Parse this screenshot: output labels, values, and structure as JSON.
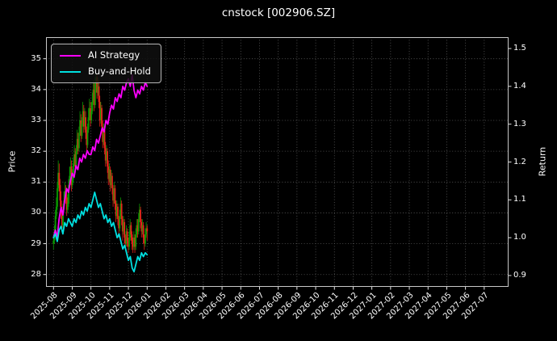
{
  "chart_data": {
    "type": "candlestick+line",
    "title": "cnstock [002906.SZ]",
    "ylabel_left": "Price",
    "ylabel_right": "Return",
    "x_tick_labels": [
      "2025-08",
      "2025-09",
      "2025-10",
      "2025-11",
      "2025-12",
      "2026-01",
      "2026-02",
      "2026-03",
      "2026-04",
      "2026-05",
      "2026-06",
      "2026-07",
      "2026-08",
      "2026-09",
      "2026-10",
      "2026-11",
      "2026-12",
      "2027-01",
      "2027-02",
      "2027-03",
      "2027-04",
      "2027-05",
      "2027-06",
      "2027-07"
    ],
    "y_ticks_left": [
      28,
      29,
      30,
      31,
      32,
      33,
      34,
      35
    ],
    "y_ticks_right": [
      "0.9",
      "1.0",
      "1.1",
      "1.2",
      "1.3",
      "1.4",
      "1.5"
    ],
    "ylim_left": [
      27.6,
      35.7
    ],
    "ylim_right": [
      0.87,
      1.53
    ],
    "xlim_months": [
      -0.4,
      24.3
    ],
    "grid": true,
    "legend_position": "top-left",
    "colors": {
      "background": "#000000",
      "text": "#ffffff",
      "grid": "#5b5b5b",
      "spine": "#c8c8c8",
      "candle_up": "#0a9c00",
      "candle_down": "#e8221c"
    },
    "candles": {
      "x_start_month": 0.0,
      "x_end_month": 5.0,
      "ohlc": [
        [
          29.0,
          29.3,
          28.8,
          29.1
        ],
        [
          29.1,
          29.6,
          29.0,
          29.4
        ],
        [
          29.4,
          30.1,
          29.3,
          29.9
        ],
        [
          29.9,
          30.5,
          29.8,
          30.2
        ],
        [
          30.2,
          31.0,
          30.1,
          30.8
        ],
        [
          30.8,
          31.7,
          30.7,
          31.3
        ],
        [
          31.3,
          31.6,
          30.7,
          30.9
        ],
        [
          30.9,
          31.1,
          30.2,
          30.4
        ],
        [
          30.4,
          30.7,
          29.8,
          30.0
        ],
        [
          30.0,
          30.2,
          29.4,
          29.6
        ],
        [
          29.6,
          30.3,
          29.5,
          30.1
        ],
        [
          30.1,
          30.7,
          30.0,
          30.4
        ],
        [
          30.4,
          31.0,
          30.3,
          30.7
        ],
        [
          30.7,
          30.9,
          30.3,
          30.5
        ],
        [
          30.5,
          30.7,
          29.9,
          30.1
        ],
        [
          30.1,
          30.6,
          30.0,
          30.3
        ],
        [
          30.3,
          31.1,
          30.2,
          30.9
        ],
        [
          30.9,
          31.5,
          30.8,
          31.2
        ],
        [
          31.2,
          31.8,
          31.1,
          31.5
        ],
        [
          31.5,
          31.7,
          30.7,
          30.9
        ],
        [
          30.9,
          31.4,
          30.8,
          31.1
        ],
        [
          31.1,
          31.8,
          31.0,
          31.6
        ],
        [
          31.6,
          32.2,
          31.5,
          31.9
        ],
        [
          31.9,
          32.1,
          31.3,
          31.5
        ],
        [
          31.5,
          32.2,
          31.4,
          32.0
        ],
        [
          32.0,
          32.7,
          31.9,
          32.4
        ],
        [
          32.4,
          32.6,
          31.9,
          32.1
        ],
        [
          32.1,
          32.8,
          32.0,
          32.6
        ],
        [
          32.6,
          33.3,
          32.5,
          33.0
        ],
        [
          33.0,
          33.2,
          32.3,
          32.5
        ],
        [
          32.5,
          33.1,
          32.4,
          32.9
        ],
        [
          32.9,
          33.6,
          32.8,
          33.3
        ],
        [
          33.3,
          33.5,
          32.6,
          32.8
        ],
        [
          32.8,
          33.4,
          32.7,
          33.1
        ],
        [
          33.1,
          33.3,
          32.4,
          32.6
        ],
        [
          32.6,
          32.8,
          32.0,
          32.2
        ],
        [
          32.2,
          32.9,
          32.1,
          32.7
        ],
        [
          32.7,
          33.4,
          32.6,
          33.1
        ],
        [
          33.1,
          33.7,
          33.0,
          33.4
        ],
        [
          33.4,
          33.6,
          32.8,
          33.0
        ],
        [
          33.0,
          33.6,
          32.9,
          33.3
        ],
        [
          33.3,
          33.9,
          33.2,
          33.6
        ],
        [
          33.6,
          34.3,
          33.5,
          34.0
        ],
        [
          34.0,
          34.2,
          33.3,
          33.5
        ],
        [
          33.5,
          34.4,
          33.4,
          34.2
        ],
        [
          34.2,
          34.5,
          33.9,
          34.4
        ],
        [
          34.4,
          34.5,
          33.7,
          33.9
        ],
        [
          33.9,
          34.4,
          33.8,
          34.1
        ],
        [
          34.1,
          34.3,
          33.4,
          33.6
        ],
        [
          33.6,
          33.8,
          32.8,
          33.0
        ],
        [
          33.0,
          33.6,
          32.9,
          33.4
        ],
        [
          33.4,
          33.5,
          32.6,
          32.8
        ],
        [
          32.8,
          33.0,
          32.1,
          32.3
        ],
        [
          32.3,
          32.9,
          32.2,
          32.7
        ],
        [
          32.7,
          32.8,
          31.9,
          32.1
        ],
        [
          32.1,
          32.3,
          31.5,
          31.7
        ],
        [
          31.7,
          32.2,
          31.6,
          32.0
        ],
        [
          32.0,
          32.1,
          31.3,
          31.5
        ],
        [
          31.5,
          31.7,
          30.9,
          31.1
        ],
        [
          31.1,
          31.6,
          31.0,
          31.4
        ],
        [
          31.4,
          31.5,
          30.7,
          30.9
        ],
        [
          30.9,
          31.4,
          30.8,
          31.2
        ],
        [
          31.2,
          31.3,
          30.6,
          30.8
        ],
        [
          30.8,
          30.9,
          30.2,
          30.4
        ],
        [
          30.4,
          31.0,
          30.3,
          30.8
        ],
        [
          30.8,
          30.9,
          30.1,
          30.3
        ],
        [
          30.3,
          30.4,
          29.7,
          29.9
        ],
        [
          29.9,
          30.4,
          29.8,
          30.2
        ],
        [
          30.2,
          30.3,
          29.6,
          29.8
        ],
        [
          29.8,
          29.9,
          29.2,
          29.5
        ],
        [
          29.5,
          30.1,
          29.4,
          29.9
        ],
        [
          29.9,
          30.5,
          29.8,
          30.3
        ],
        [
          30.3,
          30.4,
          29.6,
          29.8
        ],
        [
          29.8,
          29.9,
          29.1,
          29.4
        ],
        [
          29.4,
          29.9,
          29.3,
          29.7
        ],
        [
          29.7,
          29.8,
          29.0,
          29.2
        ],
        [
          29.2,
          29.3,
          28.8,
          29.0
        ],
        [
          29.0,
          29.6,
          28.9,
          29.4
        ],
        [
          29.4,
          29.5,
          28.9,
          29.1
        ],
        [
          29.1,
          29.2,
          28.7,
          28.9
        ],
        [
          28.9,
          29.4,
          28.8,
          29.2
        ],
        [
          29.2,
          29.8,
          29.1,
          29.6
        ],
        [
          29.6,
          29.7,
          29.1,
          29.3
        ],
        [
          29.3,
          29.4,
          28.8,
          29.0
        ],
        [
          29.0,
          29.2,
          28.7,
          28.9
        ],
        [
          28.9,
          29.4,
          28.8,
          29.2
        ],
        [
          29.2,
          29.3,
          28.7,
          28.9
        ],
        [
          28.9,
          29.5,
          28.8,
          29.3
        ],
        [
          29.3,
          29.8,
          29.2,
          29.6
        ],
        [
          29.6,
          29.8,
          29.2,
          29.4
        ],
        [
          29.4,
          30.0,
          29.3,
          29.8
        ],
        [
          29.8,
          30.3,
          29.7,
          30.1
        ],
        [
          30.1,
          30.2,
          29.5,
          29.7
        ],
        [
          29.7,
          29.8,
          29.2,
          29.4
        ],
        [
          29.4,
          29.8,
          29.3,
          29.6
        ],
        [
          29.6,
          29.7,
          29.0,
          29.2
        ],
        [
          29.2,
          29.3,
          28.8,
          29.0
        ],
        [
          29.0,
          29.5,
          28.9,
          29.3
        ],
        [
          29.3,
          29.7,
          29.2,
          29.5
        ],
        [
          29.5,
          29.6,
          29.1,
          29.4
        ]
      ]
    },
    "series": [
      {
        "name": "AI Strategy",
        "color": "#ff00ff",
        "axis": "right",
        "x_start_month": 0.0,
        "x_step_month": 0.1,
        "values": [
          1.0,
          1.02,
          1.0,
          1.05,
          1.08,
          1.06,
          1.1,
          1.13,
          1.12,
          1.15,
          1.17,
          1.16,
          1.19,
          1.18,
          1.21,
          1.2,
          1.22,
          1.21,
          1.23,
          1.22,
          1.22,
          1.24,
          1.23,
          1.26,
          1.25,
          1.27,
          1.29,
          1.28,
          1.31,
          1.3,
          1.33,
          1.35,
          1.34,
          1.37,
          1.36,
          1.38,
          1.37,
          1.4,
          1.39,
          1.41,
          1.42,
          1.4,
          1.43,
          1.39,
          1.37,
          1.39,
          1.38,
          1.4,
          1.39,
          1.41,
          1.4
        ]
      },
      {
        "name": "Buy-and-Hold",
        "color": "#00e0e0",
        "axis": "right",
        "x_start_month": 0.0,
        "x_step_month": 0.1,
        "values": [
          1.0,
          1.01,
          0.99,
          1.02,
          1.03,
          1.01,
          1.04,
          1.03,
          1.05,
          1.04,
          1.03,
          1.05,
          1.04,
          1.06,
          1.05,
          1.07,
          1.06,
          1.08,
          1.07,
          1.09,
          1.08,
          1.1,
          1.12,
          1.1,
          1.08,
          1.09,
          1.07,
          1.05,
          1.06,
          1.04,
          1.05,
          1.03,
          1.04,
          1.02,
          1.0,
          1.01,
          0.99,
          0.97,
          0.98,
          0.96,
          0.94,
          0.95,
          0.92,
          0.91,
          0.93,
          0.95,
          0.94,
          0.96,
          0.95,
          0.96,
          0.955
        ]
      }
    ]
  }
}
